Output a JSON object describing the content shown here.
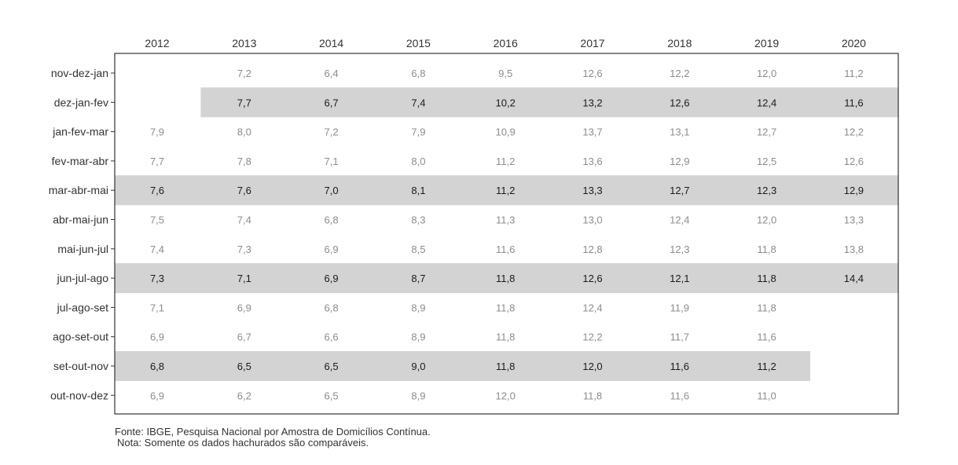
{
  "chart_data": {
    "type": "table",
    "title": "",
    "columns": [
      "2012",
      "2013",
      "2014",
      "2015",
      "2016",
      "2017",
      "2018",
      "2019",
      "2020"
    ],
    "rows": [
      {
        "label": "nov-dez-jan",
        "highlight": false,
        "values": [
          "",
          "7,2",
          "6,4",
          "6,8",
          "9,5",
          "12,6",
          "12,2",
          "12,0",
          "11,2"
        ]
      },
      {
        "label": "dez-jan-fev",
        "highlight": true,
        "values": [
          "",
          "7,7",
          "6,7",
          "7,4",
          "10,2",
          "13,2",
          "12,6",
          "12,4",
          "11,6"
        ]
      },
      {
        "label": "jan-fev-mar",
        "highlight": false,
        "values": [
          "7,9",
          "8,0",
          "7,2",
          "7,9",
          "10,9",
          "13,7",
          "13,1",
          "12,7",
          "12,2"
        ]
      },
      {
        "label": "fev-mar-abr",
        "highlight": false,
        "values": [
          "7,7",
          "7,8",
          "7,1",
          "8,0",
          "11,2",
          "13,6",
          "12,9",
          "12,5",
          "12,6"
        ]
      },
      {
        "label": "mar-abr-mai",
        "highlight": true,
        "values": [
          "7,6",
          "7,6",
          "7,0",
          "8,1",
          "11,2",
          "13,3",
          "12,7",
          "12,3",
          "12,9"
        ]
      },
      {
        "label": "abr-mai-jun",
        "highlight": false,
        "values": [
          "7,5",
          "7,4",
          "6,8",
          "8,3",
          "11,3",
          "13,0",
          "12,4",
          "12,0",
          "13,3"
        ]
      },
      {
        "label": "mai-jun-jul",
        "highlight": false,
        "values": [
          "7,4",
          "7,3",
          "6,9",
          "8,5",
          "11,6",
          "12,8",
          "12,3",
          "11,8",
          "13,8"
        ]
      },
      {
        "label": "jun-jul-ago",
        "highlight": true,
        "values": [
          "7,3",
          "7,1",
          "6,9",
          "8,7",
          "11,8",
          "12,6",
          "12,1",
          "11,8",
          "14,4"
        ]
      },
      {
        "label": "jul-ago-set",
        "highlight": false,
        "values": [
          "7,1",
          "6,9",
          "6,8",
          "8,9",
          "11,8",
          "12,4",
          "11,9",
          "11,8",
          ""
        ]
      },
      {
        "label": "ago-set-out",
        "highlight": false,
        "values": [
          "6,9",
          "6,7",
          "6,6",
          "8,9",
          "11,8",
          "12,2",
          "11,7",
          "11,6",
          ""
        ]
      },
      {
        "label": "set-out-nov",
        "highlight": true,
        "values": [
          "6,8",
          "6,5",
          "6,5",
          "9,0",
          "11,8",
          "12,0",
          "11,6",
          "11,2",
          ""
        ]
      },
      {
        "label": "out-nov-dez",
        "highlight": false,
        "values": [
          "6,9",
          "6,2",
          "6,5",
          "8,9",
          "12,0",
          "11,8",
          "11,6",
          "11,0",
          ""
        ]
      }
    ],
    "colors": {
      "highlight_band": "#d3d3d3",
      "plain_text": "#8c8c8c",
      "highlight_text": "#1a1a1a",
      "label_text": "#333333"
    }
  },
  "notes": {
    "source": "Fonte: IBGE, Pesquisa Nacional por Amostra de Domicílios Contínua.",
    "note": "Nota: Somente os dados hachurados são comparáveis."
  }
}
